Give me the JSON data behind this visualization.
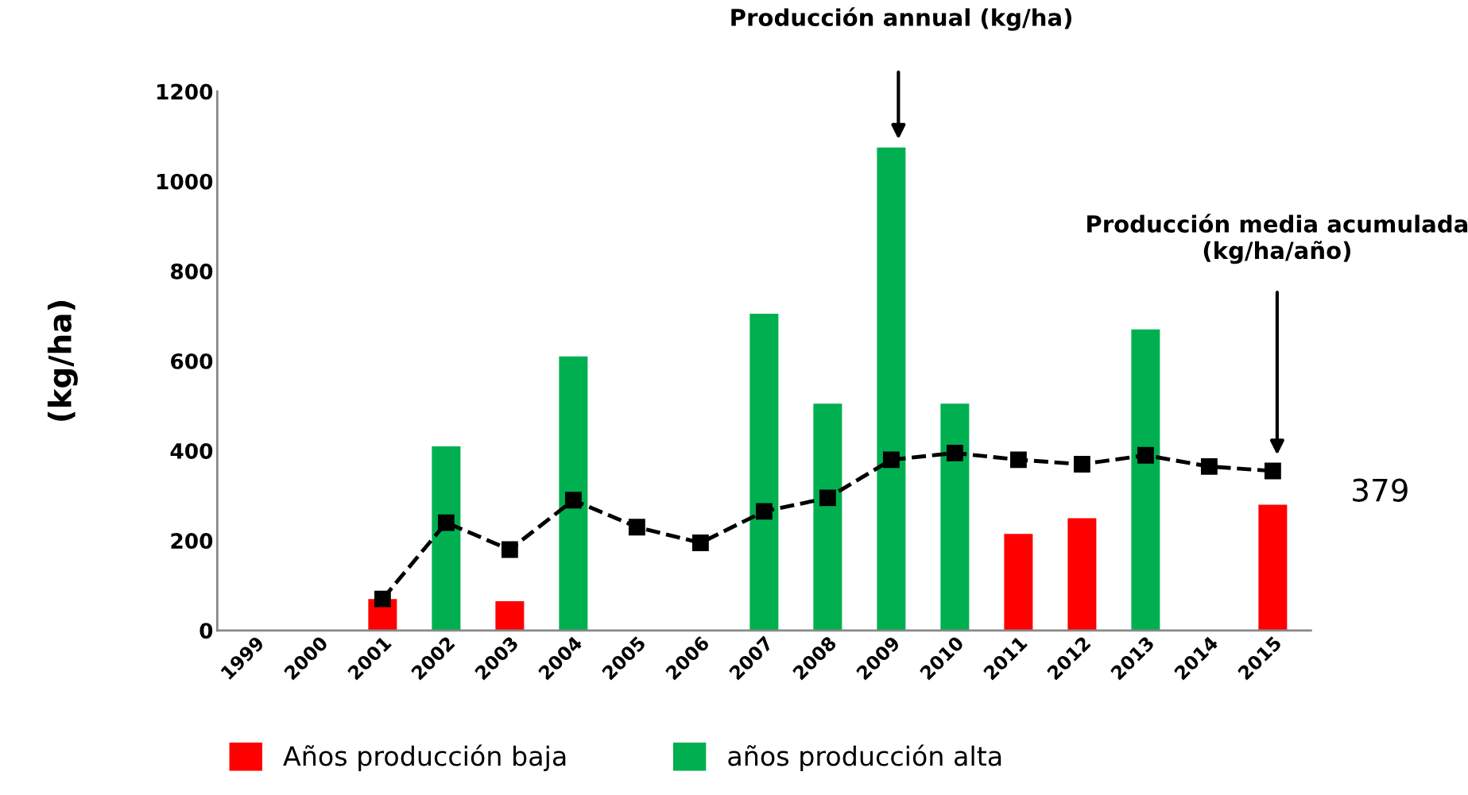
{
  "chart_data": {
    "type": "bar",
    "ylabel": "(kg/ha)",
    "categories": [
      "1999",
      "2000",
      "2001",
      "2002",
      "2003",
      "2004",
      "2005",
      "2006",
      "2007",
      "2008",
      "2009",
      "2010",
      "2011",
      "2012",
      "2013",
      "2014",
      "2015"
    ],
    "series": [
      {
        "name": "Años producción baja",
        "color": "#ff0000",
        "values": [
          null,
          null,
          70,
          null,
          65,
          null,
          null,
          null,
          null,
          null,
          null,
          null,
          215,
          250,
          null,
          null,
          280
        ]
      },
      {
        "name": "años producción alta",
        "color": "#00b050",
        "values": [
          null,
          null,
          null,
          410,
          null,
          610,
          null,
          null,
          705,
          505,
          1075,
          505,
          null,
          null,
          670,
          null,
          null
        ]
      },
      {
        "type": "line",
        "color": "#000000",
        "marker": "square",
        "line_style": "dashed",
        "values": [
          null,
          null,
          70,
          240,
          180,
          290,
          230,
          195,
          265,
          295,
          380,
          395,
          380,
          370,
          390,
          365,
          355
        ]
      }
    ],
    "ylim": [
      0,
      1200
    ],
    "yticks": [
      0,
      200,
      400,
      600,
      800,
      1000,
      1200
    ],
    "grid": false,
    "legend": "bottom",
    "annotations": [
      "Producción annual (kg/ha)",
      "Producción media acumulada\n(kg/ha/año)",
      "379"
    ]
  }
}
